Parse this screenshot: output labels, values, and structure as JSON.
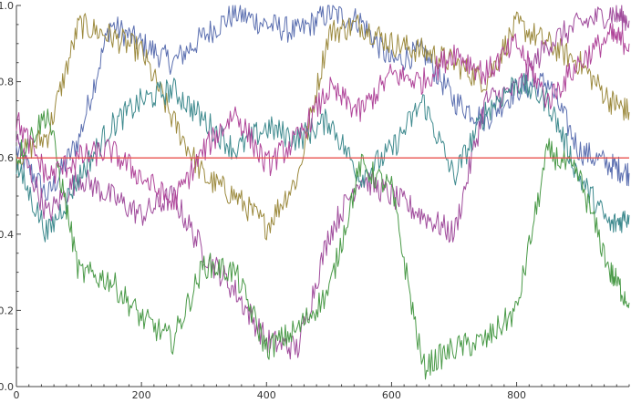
{
  "chart_data": {
    "type": "line",
    "title": "",
    "xlabel": "",
    "ylabel": "",
    "xlim": [
      0,
      980
    ],
    "ylim": [
      0.0,
      1.0
    ],
    "x_ticks": [
      0,
      200,
      400,
      600,
      800
    ],
    "x_tick_labels": [
      "0",
      "200",
      "400",
      "600",
      "800"
    ],
    "y_ticks": [
      0.0,
      0.2,
      0.4,
      0.6,
      0.8,
      1.0
    ],
    "y_tick_labels": [
      "0.0",
      "0.2",
      "0.4",
      "0.6",
      "0.8",
      "1.0"
    ],
    "grid": false,
    "legend": "none",
    "reference_line": {
      "y": 0.6,
      "color": "#e8524f"
    },
    "x": [
      0,
      50,
      100,
      150,
      200,
      250,
      300,
      350,
      400,
      450,
      500,
      550,
      600,
      650,
      700,
      750,
      800,
      850,
      900,
      950,
      980
    ],
    "series": [
      {
        "color": "#5b6fb0",
        "values": [
          0.62,
          0.5,
          0.65,
          0.95,
          0.9,
          0.85,
          0.92,
          0.98,
          0.95,
          0.93,
          0.98,
          0.96,
          0.85,
          0.88,
          0.75,
          0.7,
          0.78,
          0.8,
          0.62,
          0.58,
          0.56
        ]
      },
      {
        "color": "#9c8a3e",
        "values": [
          0.6,
          0.66,
          0.95,
          0.92,
          0.88,
          0.7,
          0.55,
          0.5,
          0.42,
          0.55,
          0.93,
          0.95,
          0.9,
          0.88,
          0.85,
          0.8,
          0.95,
          0.9,
          0.85,
          0.75,
          0.72
        ]
      },
      {
        "color": "#a04c9c",
        "values": [
          0.65,
          0.45,
          0.55,
          0.5,
          0.45,
          0.5,
          0.35,
          0.25,
          0.12,
          0.1,
          0.4,
          0.55,
          0.5,
          0.45,
          0.4,
          0.75,
          0.78,
          0.9,
          0.95,
          0.98,
          0.96
        ]
      },
      {
        "color": "#3e8a8e",
        "values": [
          0.58,
          0.4,
          0.55,
          0.68,
          0.75,
          0.78,
          0.7,
          0.62,
          0.68,
          0.65,
          0.7,
          0.55,
          0.62,
          0.75,
          0.55,
          0.72,
          0.8,
          0.75,
          0.55,
          0.42,
          0.45
        ]
      },
      {
        "color": "#4a9a48",
        "values": [
          0.6,
          0.72,
          0.3,
          0.28,
          0.18,
          0.12,
          0.32,
          0.3,
          0.1,
          0.15,
          0.25,
          0.58,
          0.52,
          0.05,
          0.1,
          0.12,
          0.2,
          0.62,
          0.55,
          0.3,
          0.22
        ]
      },
      {
        "color": "#b0469a",
        "values": [
          0.7,
          0.55,
          0.6,
          0.62,
          0.55,
          0.48,
          0.62,
          0.72,
          0.58,
          0.65,
          0.78,
          0.72,
          0.82,
          0.8,
          0.88,
          0.82,
          0.9,
          0.75,
          0.85,
          0.92,
          0.9
        ]
      }
    ]
  }
}
